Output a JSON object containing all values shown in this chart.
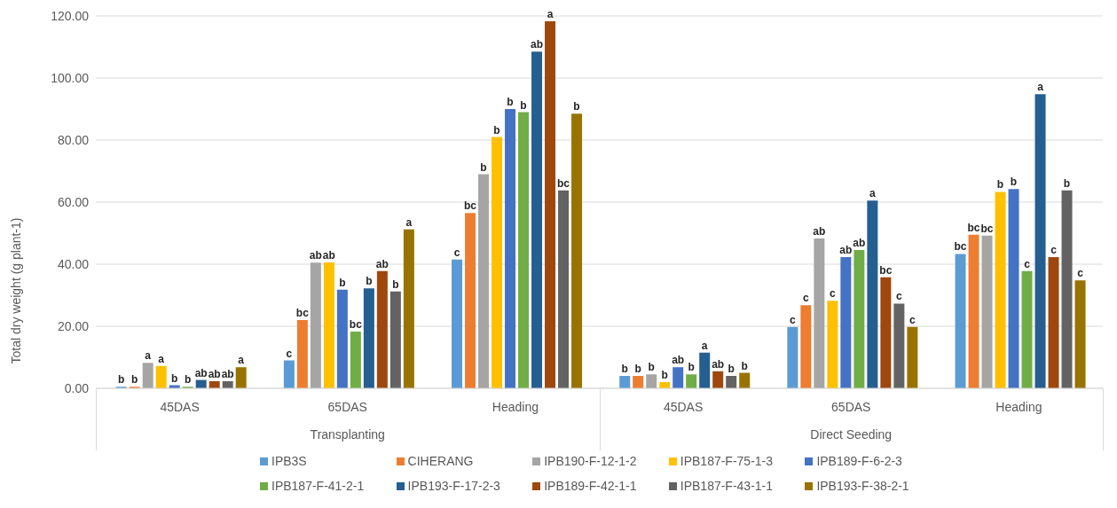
{
  "chart_data": {
    "type": "bar",
    "ylabel": "Total dry weight (g plant-1)",
    "categories": [
      "45DAS",
      "65DAS",
      "Heading",
      "45DAS",
      "65DAS",
      "Heading"
    ],
    "annotations": [
      "Transplanting",
      "Direct Seeding"
    ],
    "series": [
      {
        "name": "IPB3S",
        "color": "#5b9bd5",
        "values": [
          0.5,
          9,
          41.5,
          4,
          19.8,
          43.3
        ],
        "value_labels": [
          "b",
          "c",
          "c",
          "b",
          "c",
          "bc"
        ]
      },
      {
        "name": "CIHERANG",
        "color": "#ed7d31",
        "values": [
          0.5,
          22,
          56.5,
          4,
          26.8,
          49.5
        ],
        "value_labels": [
          "b",
          "bc",
          "bc",
          "b",
          "c",
          "bc"
        ]
      },
      {
        "name": "IPB190-F-12-1-2",
        "color": "#a5a5a5",
        "values": [
          8.2,
          40.5,
          69,
          4.5,
          48.3,
          49.2
        ],
        "value_labels": [
          "a",
          "ab",
          "b",
          "b",
          "ab",
          "bc"
        ]
      },
      {
        "name": "IPB187-F-75-1-3",
        "color": "#ffc000",
        "values": [
          7.2,
          40.6,
          81,
          2,
          28.2,
          63.3
        ],
        "value_labels": [
          "a",
          "ab",
          "b",
          "b",
          "c",
          "b"
        ]
      },
      {
        "name": "IPB189-F-6-2-3",
        "color": "#4472c4",
        "values": [
          1,
          31.8,
          90,
          6.8,
          42.3,
          64.2
        ],
        "value_labels": [
          "b",
          "b",
          "b",
          "ab",
          "ab",
          "b"
        ]
      },
      {
        "name": "IPB187-F-41-2-1",
        "color": "#70ad47",
        "values": [
          0.5,
          18.3,
          89,
          4.5,
          44.6,
          37.8
        ],
        "value_labels": [
          "b",
          "bc",
          "b",
          "b",
          "ab",
          "c"
        ]
      },
      {
        "name": "IPB193-F-17-2-3",
        "color": "#255e91",
        "values": [
          2.7,
          32.2,
          108.5,
          11.5,
          60.5,
          94.8
        ],
        "value_labels": [
          "ab",
          "b",
          "ab",
          "a",
          "a",
          "a"
        ]
      },
      {
        "name": "IPB189-F-42-1-1",
        "color": "#9e480e",
        "values": [
          2.3,
          37.8,
          118.3,
          5.5,
          35.8,
          42.3
        ],
        "value_labels": [
          "ab",
          "ab",
          "a",
          "ab",
          "bc",
          "c"
        ]
      },
      {
        "name": "IPB187-F-43-1-1",
        "color": "#636363",
        "values": [
          2.3,
          31.2,
          63.8,
          4,
          27.3,
          63.8
        ],
        "value_labels": [
          "ab",
          "b",
          "bc",
          "b",
          "c",
          "b"
        ]
      },
      {
        "name": "IPB193-F-38-2-1",
        "color": "#997300",
        "values": [
          6.8,
          51.2,
          88.5,
          5,
          19.8,
          34.8
        ],
        "value_labels": [
          "a",
          "a",
          "b",
          "b",
          "c",
          "c"
        ]
      }
    ],
    "ylim": [
      0,
      120
    ],
    "yticks": [
      {
        "value": 0,
        "label": "0.00"
      },
      {
        "value": 20,
        "label": "20.00"
      },
      {
        "value": 40,
        "label": "40.00"
      },
      {
        "value": 60,
        "label": "60.00"
      },
      {
        "value": 80,
        "label": "80.00"
      },
      {
        "value": 100,
        "label": "100.00"
      },
      {
        "value": 120,
        "label": "120.00"
      }
    ],
    "grid": "y",
    "legend": "bottom"
  }
}
